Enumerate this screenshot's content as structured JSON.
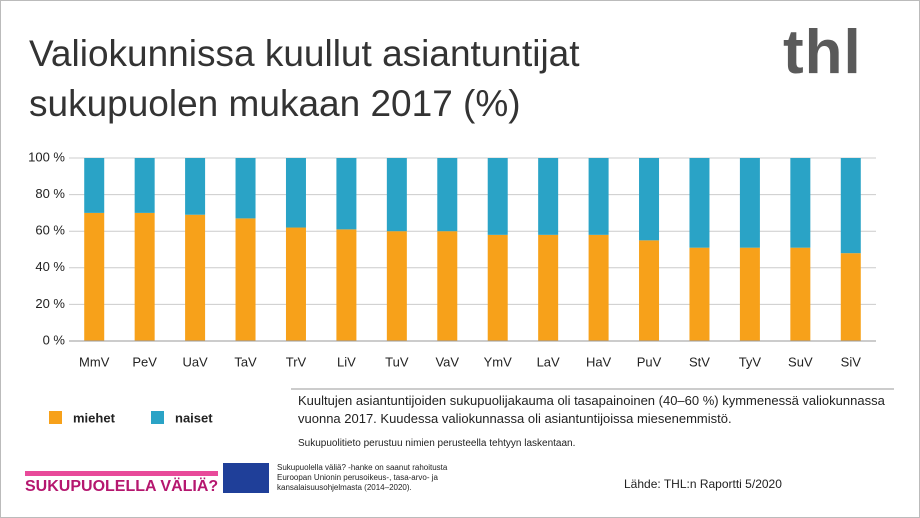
{
  "chart_data": {
    "type": "stacked-bar",
    "title": "Valiokunnissa kuullut asiantuntijat sukupuolen mukaan 2017 (%)",
    "categories": [
      "MmV",
      "PeV",
      "UaV",
      "TaV",
      "TrV",
      "LiV",
      "TuV",
      "VaV",
      "YmV",
      "LaV",
      "HaV",
      "PuV",
      "StV",
      "TyV",
      "SuV",
      "SiV"
    ],
    "series": [
      {
        "name": "miehet",
        "color": "#f7a11a",
        "values": [
          70,
          70,
          69,
          67,
          62,
          61,
          60,
          60,
          58,
          58,
          58,
          55,
          51,
          51,
          51,
          48
        ]
      },
      {
        "name": "naiset",
        "color": "#2aa3c6",
        "values": [
          30,
          30,
          31,
          33,
          38,
          39,
          40,
          40,
          42,
          42,
          42,
          45,
          49,
          49,
          49,
          52
        ]
      }
    ],
    "ylim": [
      0,
      100
    ],
    "yticks": [
      {
        "value": 0,
        "label": "0 %"
      },
      {
        "value": 20,
        "label": "20 %"
      },
      {
        "value": 40,
        "label": "40 %"
      },
      {
        "value": 60,
        "label": "60 %"
      },
      {
        "value": 80,
        "label": "80 %"
      },
      {
        "value": 100,
        "label": "100 %"
      }
    ],
    "grid": true,
    "legend": "bottom-left"
  },
  "logo": "thl",
  "note": "Kuultujen asiantuntijoiden sukupuolijakauma oli tasapainoinen (40–60 %) kymmenessä valiokunnassa vuonna 2017. Kuudessa valiokunnassa oli asiantuntijoissa miesenemmistö.",
  "footnote": "Sukupuolitieto perustuu nimien perusteella tehtyyn laskentaan.",
  "project_logo": "SUKUPUOLELLA VÄLIÄ?",
  "eu_text": "Sukupuolella väliä? -hanke on saanut rahoitusta Euroopan Unionin perusoikeus-, tasa-arvo- ja kansalaisuusohjelmasta (2014–2020).",
  "source": "Lähde: THL:n Raportti 5/2020"
}
